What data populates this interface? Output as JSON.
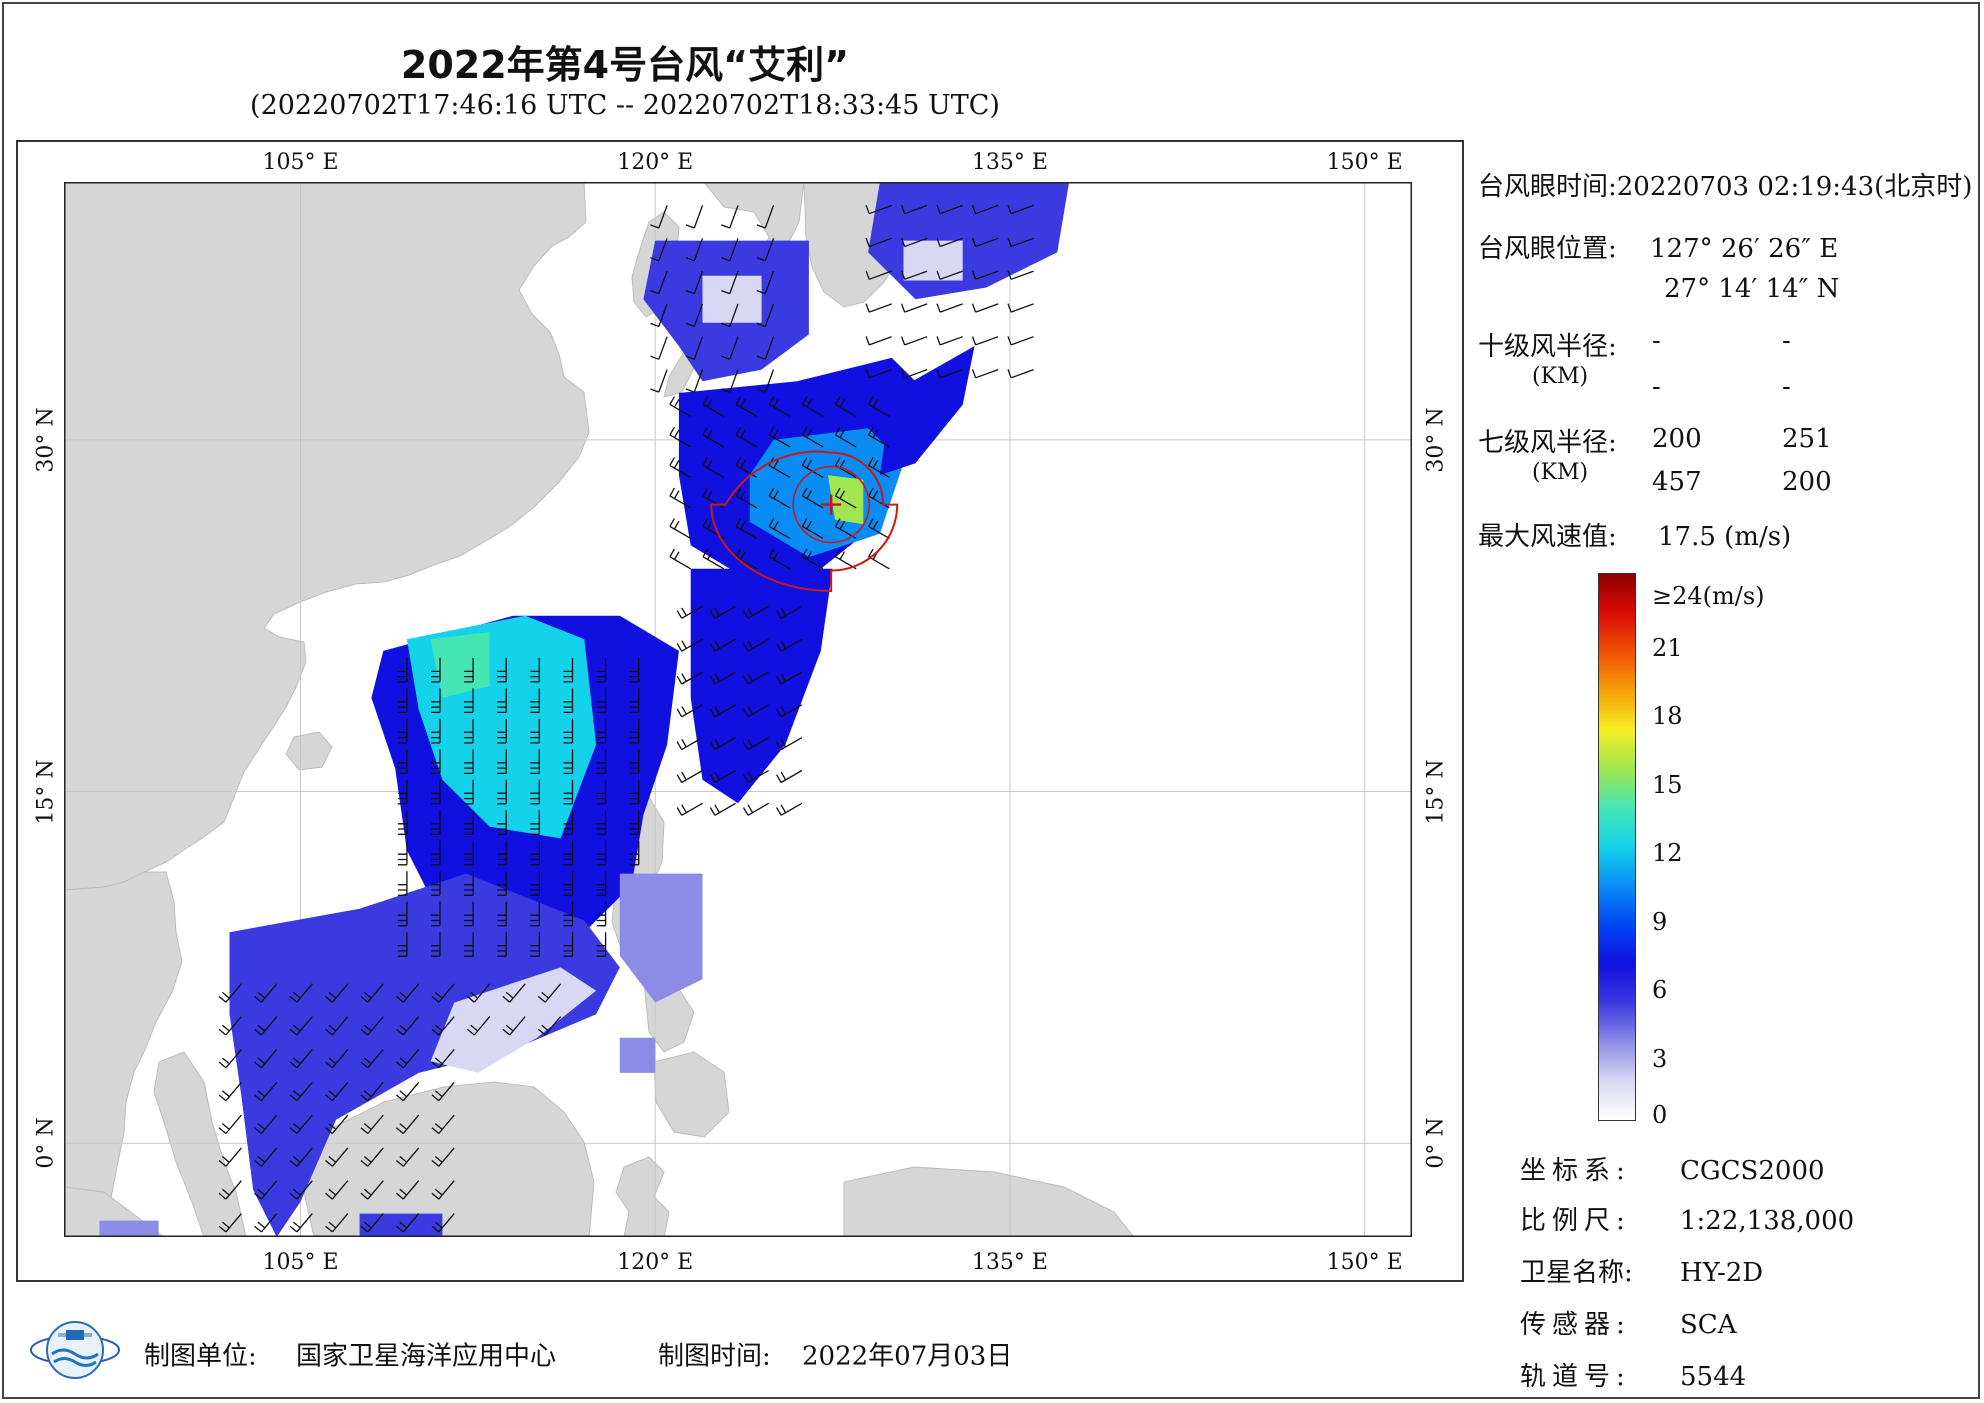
{
  "title": "2022年第4号台风“艾利”",
  "subtitle": "(20220702T17:46:16 UTC -- 20220702T18:33:45 UTC)",
  "map": {
    "extent": {
      "lon_min": 95,
      "lon_max": 152,
      "lat_min": -4,
      "lat_max": 41
    },
    "lon_ticks": [
      {
        "value": 105,
        "label": "105° E"
      },
      {
        "value": 120,
        "label": "120° E"
      },
      {
        "value": 135,
        "label": "135° E"
      },
      {
        "value": 150,
        "label": "150° E"
      }
    ],
    "lat_ticks": [
      {
        "value": 30,
        "label": "30° N"
      },
      {
        "value": 15,
        "label": "15° N"
      },
      {
        "value": 0,
        "label": "0° N"
      }
    ],
    "typhoon_center": {
      "lon": 127.44,
      "lat": 27.24
    },
    "colors": {
      "land": "#d6d6d6",
      "ocean": "#ffffff",
      "grid": "#c8c8c8",
      "center_marker": "#d01010",
      "radius_line": "#c81818"
    }
  },
  "info": {
    "eye_time_label": "台风眼时间:",
    "eye_time_value": "20220703 02:19:43(北京时)",
    "eye_pos_label": "台风眼位置:",
    "eye_lon": "127° 26′ 26″ E",
    "eye_lat": "27° 14′ 14″ N",
    "r10_label": "十级风半径:",
    "r10_unit": "(KM)",
    "r10_values": [
      "-",
      "-",
      "-",
      "-"
    ],
    "r7_label": "七级风半径:",
    "r7_unit": "(KM)",
    "r7_values": [
      "200",
      "251",
      "457",
      "200"
    ],
    "max_wind_label": "最大风速值:",
    "max_wind_value": "17.5  (m/s)"
  },
  "colorbar": {
    "top_label": "≥24(m/s)",
    "ticks": [
      "21",
      "18",
      "15",
      "12",
      "9",
      "6",
      "3",
      "0"
    ],
    "stops": [
      "#ffffff",
      "#d8d8f4",
      "#8c8ce6",
      "#3a3ae0",
      "#1010e0",
      "#0046f5",
      "#0a8cf5",
      "#14d2ea",
      "#46e6b4",
      "#a0e650",
      "#f5ee24",
      "#f5a00a",
      "#f05005",
      "#dc0a05",
      "#8c0000"
    ]
  },
  "meta": {
    "crs_label": "坐标系:",
    "crs_value": "CGCS2000",
    "scale_label": "比例尺:",
    "scale_value": "1:22,138,000",
    "satellite_label": "卫星名称:",
    "satellite_value": "HY-2D",
    "sensor_label": "传感器:",
    "sensor_value": "SCA",
    "orbit_label": "轨道号:",
    "orbit_value": "5544"
  },
  "footer": {
    "producer_label": "制图单位:",
    "producer_value": "国家卫星海洋应用中心",
    "date_label": "制图时间:",
    "date_value": "2022年07月03日"
  }
}
